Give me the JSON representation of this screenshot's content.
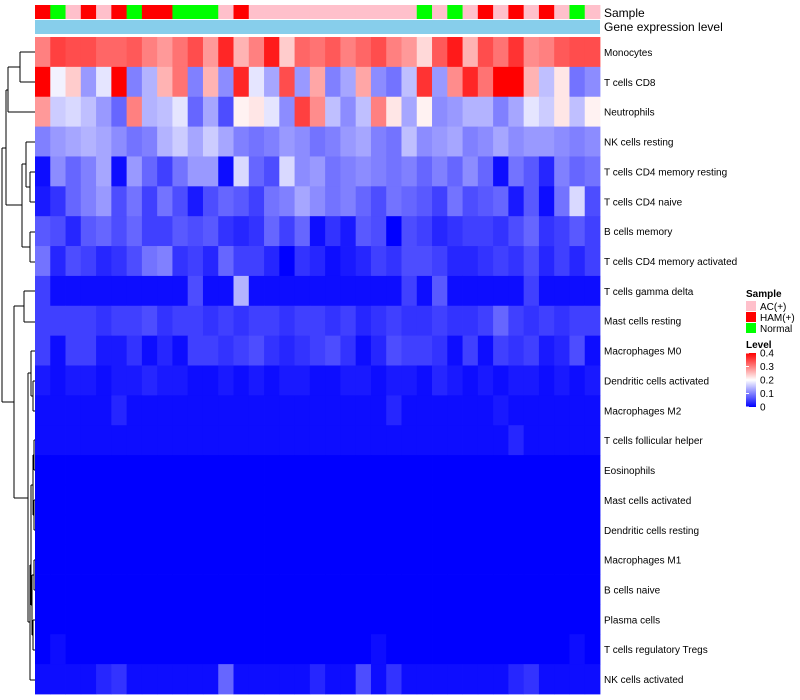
{
  "chart_data": {
    "type": "heatmap",
    "annotation_labels": [
      "Sample",
      "Gene expression level"
    ],
    "legend_sample_title": "Sample",
    "sample_groups": [
      "AC(+)",
      "HAM(+)",
      "Normal"
    ],
    "colors": {
      "low": "#0000ff",
      "mid": "#ffffff",
      "high": "#ff0000",
      "AC(+)": "#ffc0cb",
      "HAM(+)": "#ff0000",
      "Normal": "#00ff00",
      "expression_bar": "#87ceeb"
    },
    "sample_annotation": [
      1,
      2,
      0,
      1,
      0,
      1,
      2,
      1,
      1,
      2,
      2,
      2,
      0,
      1,
      0,
      0,
      0,
      0,
      0,
      0,
      0,
      0,
      0,
      0,
      0,
      2,
      0,
      2,
      0,
      1,
      0,
      1,
      0,
      1,
      0,
      2,
      0
    ],
    "legend_level_title": "Level",
    "level_ticks": [
      "0.4",
      "0.3",
      "0.2",
      "0.1",
      "0"
    ],
    "level_range": [
      0,
      0.4
    ],
    "rows": [
      "Monocytes",
      "T cells CD8",
      "Neutrophils",
      "NK cells resting",
      "T cells CD4 memory resting",
      "T cells CD4 naive",
      "B cells memory",
      "T cells CD4 memory activated",
      "T cells gamma delta",
      "Mast cells resting",
      "Macrophages M0",
      "Dendritic cells activated",
      "Macrophages M2",
      "T cells follicular helper",
      "Eosinophils",
      "Mast cells activated",
      "Dendritic cells resting",
      "Macrophages M1",
      "B cells naive",
      "Plasma cells",
      "T cells regulatory  Tregs",
      "NK cells activated"
    ],
    "values": [
      [
        0.3,
        0.35,
        0.34,
        0.34,
        0.32,
        0.32,
        0.33,
        0.3,
        0.28,
        0.31,
        0.34,
        0.28,
        0.37,
        0.26,
        0.3,
        0.38,
        0.24,
        0.32,
        0.31,
        0.33,
        0.3,
        0.32,
        0.34,
        0.3,
        0.28,
        0.23,
        0.33,
        0.38,
        0.26,
        0.34,
        0.31,
        0.36,
        0.29,
        0.3,
        0.33,
        0.34,
        0.34
      ],
      [
        0.4,
        0.19,
        0.24,
        0.12,
        0.18,
        0.4,
        0.1,
        0.14,
        0.26,
        0.31,
        0.1,
        0.26,
        0.11,
        0.37,
        0.18,
        0.13,
        0.34,
        0.12,
        0.27,
        0.1,
        0.13,
        0.27,
        0.11,
        0.09,
        0.15,
        0.36,
        0.12,
        0.29,
        0.37,
        0.31,
        0.4,
        0.4,
        0.26,
        0.15,
        0.22,
        0.09,
        0.11
      ],
      [
        0.28,
        0.16,
        0.17,
        0.15,
        0.12,
        0.08,
        0.3,
        0.14,
        0.15,
        0.18,
        0.08,
        0.13,
        0.06,
        0.21,
        0.22,
        0.18,
        0.11,
        0.35,
        0.29,
        0.15,
        0.11,
        0.15,
        0.3,
        0.22,
        0.13,
        0.21,
        0.11,
        0.12,
        0.14,
        0.14,
        0.1,
        0.13,
        0.18,
        0.16,
        0.22,
        0.15,
        0.21
      ],
      [
        0.1,
        0.12,
        0.13,
        0.14,
        0.13,
        0.11,
        0.09,
        0.1,
        0.14,
        0.16,
        0.13,
        0.16,
        0.13,
        0.1,
        0.09,
        0.1,
        0.12,
        0.11,
        0.09,
        0.1,
        0.12,
        0.13,
        0.1,
        0.09,
        0.15,
        0.11,
        0.12,
        0.13,
        0.1,
        0.11,
        0.13,
        0.11,
        0.12,
        0.12,
        0.11,
        0.1,
        0.11
      ],
      [
        0.01,
        0.11,
        0.08,
        0.1,
        0.13,
        0.01,
        0.12,
        0.08,
        0.05,
        0.09,
        0.12,
        0.12,
        0.01,
        0.17,
        0.08,
        0.06,
        0.17,
        0.11,
        0.12,
        0.09,
        0.1,
        0.11,
        0.1,
        0.09,
        0.1,
        0.08,
        0.1,
        0.08,
        0.11,
        0.08,
        0.01,
        0.09,
        0.07,
        0.03,
        0.1,
        0.08,
        0.09
      ],
      [
        0.02,
        0.04,
        0.08,
        0.1,
        0.12,
        0.06,
        0.09,
        0.05,
        0.09,
        0.06,
        0.02,
        0.06,
        0.08,
        0.07,
        0.05,
        0.09,
        0.1,
        0.13,
        0.11,
        0.09,
        0.1,
        0.08,
        0.06,
        0.09,
        0.08,
        0.07,
        0.05,
        0.09,
        0.06,
        0.07,
        0.08,
        0.02,
        0.07,
        0.01,
        0.09,
        0.17,
        0.06
      ],
      [
        0.07,
        0.06,
        0.03,
        0.07,
        0.08,
        0.06,
        0.08,
        0.05,
        0.05,
        0.07,
        0.06,
        0.07,
        0.04,
        0.03,
        0.04,
        0.08,
        0.05,
        0.08,
        0.01,
        0.04,
        0.02,
        0.07,
        0.06,
        0.0,
        0.06,
        0.05,
        0.03,
        0.04,
        0.05,
        0.05,
        0.04,
        0.06,
        0.08,
        0.04,
        0.05,
        0.07,
        0.05
      ],
      [
        0.09,
        0.03,
        0.06,
        0.05,
        0.03,
        0.04,
        0.06,
        0.09,
        0.1,
        0.04,
        0.05,
        0.03,
        0.08,
        0.05,
        0.05,
        0.03,
        0.0,
        0.04,
        0.03,
        0.01,
        0.02,
        0.03,
        0.05,
        0.04,
        0.06,
        0.06,
        0.05,
        0.03,
        0.03,
        0.04,
        0.05,
        0.04,
        0.06,
        0.03,
        0.05,
        0.03,
        0.05
      ],
      [
        0.05,
        0.01,
        0.01,
        0.01,
        0.01,
        0.01,
        0.01,
        0.01,
        0.01,
        0.01,
        0.06,
        0.01,
        0.01,
        0.14,
        0.01,
        0.01,
        0.01,
        0.01,
        0.01,
        0.01,
        0.01,
        0.01,
        0.01,
        0.01,
        0.05,
        0.01,
        0.07,
        0.01,
        0.01,
        0.01,
        0.01,
        0.01,
        0.05,
        0.01,
        0.01,
        0.01,
        0.01
      ],
      [
        0.05,
        0.05,
        0.05,
        0.05,
        0.04,
        0.05,
        0.05,
        0.06,
        0.04,
        0.05,
        0.05,
        0.04,
        0.05,
        0.04,
        0.05,
        0.05,
        0.04,
        0.05,
        0.05,
        0.04,
        0.05,
        0.03,
        0.04,
        0.05,
        0.04,
        0.04,
        0.05,
        0.04,
        0.04,
        0.05,
        0.08,
        0.05,
        0.04,
        0.05,
        0.04,
        0.05,
        0.05
      ],
      [
        0.05,
        0.01,
        0.05,
        0.05,
        0.02,
        0.02,
        0.04,
        0.01,
        0.03,
        0.01,
        0.05,
        0.05,
        0.04,
        0.05,
        0.06,
        0.04,
        0.03,
        0.04,
        0.05,
        0.06,
        0.04,
        0.01,
        0.03,
        0.06,
        0.05,
        0.05,
        0.04,
        0.01,
        0.05,
        0.01,
        0.05,
        0.04,
        0.05,
        0.02,
        0.03,
        0.06,
        0.01
      ],
      [
        0.02,
        0.01,
        0.02,
        0.02,
        0.01,
        0.02,
        0.02,
        0.03,
        0.02,
        0.02,
        0.01,
        0.01,
        0.02,
        0.01,
        0.02,
        0.01,
        0.02,
        0.02,
        0.01,
        0.01,
        0.02,
        0.02,
        0.01,
        0.02,
        0.02,
        0.01,
        0.03,
        0.02,
        0.01,
        0.02,
        0.01,
        0.02,
        0.02,
        0.01,
        0.02,
        0.01,
        0.02
      ],
      [
        0.01,
        0.01,
        0.01,
        0.01,
        0.01,
        0.03,
        0.01,
        0.01,
        0.01,
        0.01,
        0.01,
        0.01,
        0.01,
        0.01,
        0.01,
        0.01,
        0.01,
        0.01,
        0.01,
        0.01,
        0.01,
        0.01,
        0.01,
        0.03,
        0.01,
        0.01,
        0.01,
        0.01,
        0.01,
        0.01,
        0.02,
        0.01,
        0.01,
        0.01,
        0.01,
        0.01,
        0.01
      ],
      [
        0.01,
        0.01,
        0.01,
        0.01,
        0.01,
        0.01,
        0.01,
        0.01,
        0.01,
        0.01,
        0.01,
        0.01,
        0.01,
        0.01,
        0.01,
        0.01,
        0.01,
        0.01,
        0.01,
        0.01,
        0.01,
        0.01,
        0.01,
        0.01,
        0.01,
        0.01,
        0.01,
        0.01,
        0.01,
        0.01,
        0.01,
        0.03,
        0.01,
        0.01,
        0.01,
        0.01,
        0.01
      ],
      [
        0.0,
        0.0,
        0.0,
        0.0,
        0.0,
        0.0,
        0.0,
        0.0,
        0.0,
        0.0,
        0.0,
        0.0,
        0.0,
        0.0,
        0.0,
        0.0,
        0.0,
        0.0,
        0.0,
        0.0,
        0.0,
        0.0,
        0.0,
        0.0,
        0.0,
        0.0,
        0.0,
        0.0,
        0.0,
        0.0,
        0.0,
        0.0,
        0.0,
        0.0,
        0.0,
        0.0,
        0.0
      ],
      [
        0.0,
        0.0,
        0.0,
        0.0,
        0.0,
        0.0,
        0.0,
        0.0,
        0.0,
        0.0,
        0.0,
        0.0,
        0.0,
        0.0,
        0.0,
        0.0,
        0.0,
        0.0,
        0.0,
        0.0,
        0.0,
        0.0,
        0.0,
        0.0,
        0.0,
        0.0,
        0.0,
        0.0,
        0.0,
        0.0,
        0.0,
        0.0,
        0.0,
        0.0,
        0.0,
        0.0,
        0.0
      ],
      [
        0.0,
        0.0,
        0.0,
        0.0,
        0.0,
        0.0,
        0.0,
        0.0,
        0.0,
        0.0,
        0.0,
        0.0,
        0.0,
        0.0,
        0.0,
        0.0,
        0.0,
        0.0,
        0.0,
        0.0,
        0.0,
        0.0,
        0.0,
        0.0,
        0.0,
        0.0,
        0.0,
        0.0,
        0.0,
        0.0,
        0.0,
        0.0,
        0.0,
        0.0,
        0.0,
        0.0,
        0.0
      ],
      [
        0.0,
        0.0,
        0.0,
        0.0,
        0.0,
        0.0,
        0.0,
        0.0,
        0.0,
        0.0,
        0.0,
        0.0,
        0.0,
        0.0,
        0.0,
        0.0,
        0.0,
        0.0,
        0.0,
        0.0,
        0.0,
        0.0,
        0.0,
        0.0,
        0.0,
        0.0,
        0.0,
        0.0,
        0.0,
        0.0,
        0.0,
        0.0,
        0.0,
        0.0,
        0.0,
        0.0,
        0.0
      ],
      [
        0.0,
        0.0,
        0.0,
        0.0,
        0.0,
        0.0,
        0.0,
        0.0,
        0.0,
        0.0,
        0.0,
        0.0,
        0.0,
        0.0,
        0.0,
        0.0,
        0.0,
        0.0,
        0.0,
        0.0,
        0.0,
        0.0,
        0.0,
        0.0,
        0.0,
        0.0,
        0.0,
        0.0,
        0.0,
        0.0,
        0.0,
        0.0,
        0.0,
        0.0,
        0.0,
        0.0,
        0.0
      ],
      [
        0.0,
        0.0,
        0.0,
        0.0,
        0.0,
        0.0,
        0.0,
        0.0,
        0.0,
        0.0,
        0.0,
        0.0,
        0.0,
        0.0,
        0.0,
        0.0,
        0.0,
        0.0,
        0.0,
        0.0,
        0.0,
        0.0,
        0.0,
        0.0,
        0.0,
        0.0,
        0.0,
        0.0,
        0.0,
        0.0,
        0.0,
        0.0,
        0.0,
        0.0,
        0.0,
        0.0,
        0.0
      ],
      [
        0.0,
        0.01,
        0.0,
        0.0,
        0.0,
        0.0,
        0.0,
        0.0,
        0.0,
        0.0,
        0.0,
        0.0,
        0.0,
        0.0,
        0.0,
        0.0,
        0.0,
        0.0,
        0.0,
        0.0,
        0.0,
        0.0,
        0.01,
        0.0,
        0.0,
        0.0,
        0.0,
        0.0,
        0.0,
        0.0,
        0.0,
        0.0,
        0.0,
        0.0,
        0.0,
        0.01,
        0.0
      ],
      [
        0.01,
        0.01,
        0.01,
        0.01,
        0.03,
        0.04,
        0.01,
        0.01,
        0.01,
        0.01,
        0.01,
        0.01,
        0.08,
        0.01,
        0.01,
        0.01,
        0.01,
        0.01,
        0.03,
        0.01,
        0.01,
        0.06,
        0.01,
        0.04,
        0.01,
        0.01,
        0.01,
        0.01,
        0.01,
        0.01,
        0.01,
        0.03,
        0.04,
        0.01,
        0.01,
        0.01,
        0.01
      ]
    ]
  }
}
